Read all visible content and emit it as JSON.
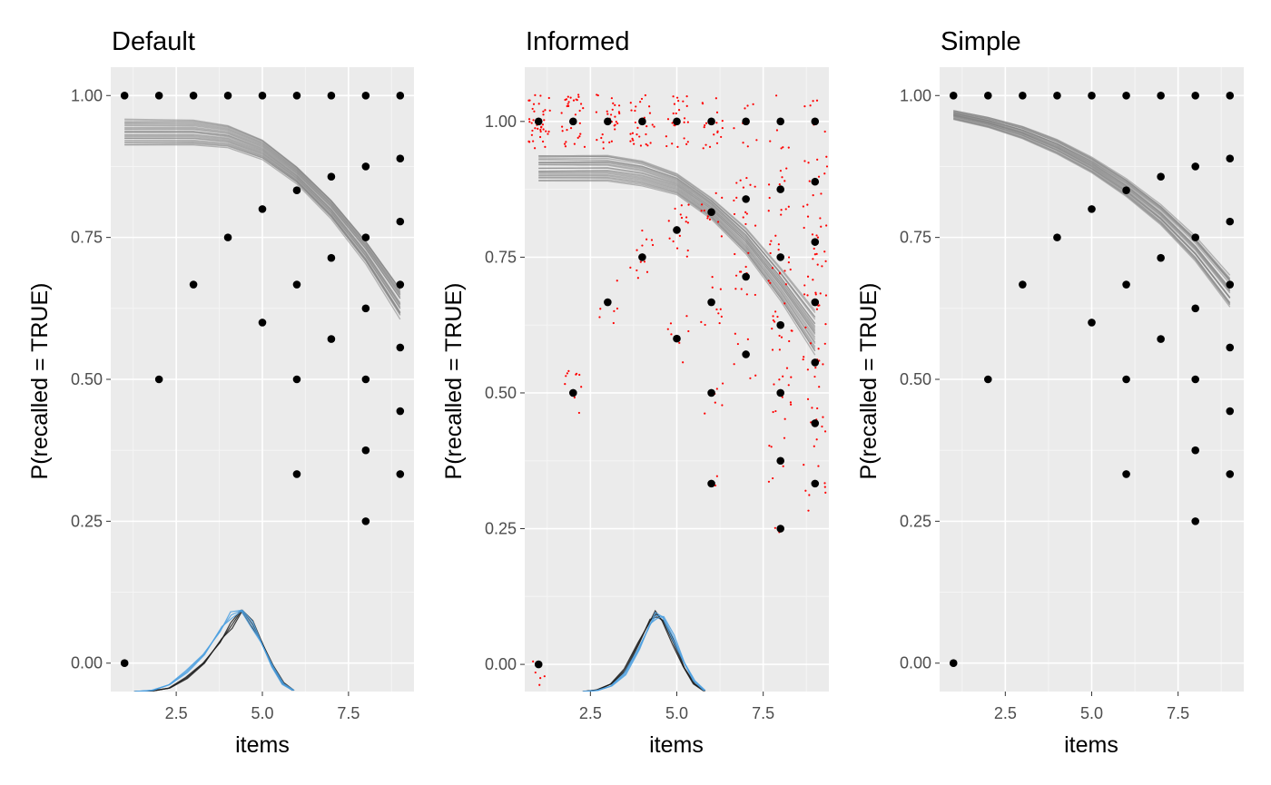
{
  "colors": {
    "panel_background": "#EBEBEB",
    "grid_major": "#FFFFFF",
    "grid_minor": "#F5F5F5",
    "points": "#000000",
    "fit_lines": "#808080",
    "jitter_points": "#FF0000",
    "density_dark": "#1A1A1A",
    "density_blue": "#4A9FE0"
  },
  "chart_data": [
    {
      "type": "scatter",
      "title": "Default",
      "xlabel": "items",
      "ylabel": "P(recalled = TRUE)",
      "xlim": [
        0.6,
        9.4
      ],
      "ylim": [
        -0.05,
        1.05
      ],
      "xticks": [
        2.5,
        5.0,
        7.5
      ],
      "xtick_labels": [
        "2.5",
        "5.0",
        "7.5"
      ],
      "yticks": [
        0,
        0.25,
        0.5,
        0.75,
        1.0
      ],
      "ytick_labels": [
        "0.00",
        "0.25",
        "0.50",
        "0.75",
        "1.00"
      ],
      "grid": true,
      "points": [
        [
          1,
          1.0
        ],
        [
          2,
          1.0
        ],
        [
          3,
          1.0
        ],
        [
          4,
          1.0
        ],
        [
          5,
          1.0
        ],
        [
          6,
          1.0
        ],
        [
          7,
          1.0
        ],
        [
          8,
          1.0
        ],
        [
          9,
          1.0
        ],
        [
          1,
          0.0
        ],
        [
          2,
          0.5
        ],
        [
          3,
          0.667
        ],
        [
          4,
          0.75
        ],
        [
          5,
          0.8
        ],
        [
          5,
          0.6
        ],
        [
          6,
          0.833
        ],
        [
          6,
          0.667
        ],
        [
          6,
          0.5
        ],
        [
          6,
          0.333
        ],
        [
          7,
          0.857
        ],
        [
          7,
          0.714
        ],
        [
          7,
          0.571
        ],
        [
          8,
          0.875
        ],
        [
          8,
          0.75
        ],
        [
          8,
          0.625
        ],
        [
          8,
          0.5
        ],
        [
          8,
          0.375
        ],
        [
          8,
          0.25
        ],
        [
          9,
          0.889
        ],
        [
          9,
          0.778
        ],
        [
          9,
          0.667
        ],
        [
          9,
          0.556
        ],
        [
          9,
          0.444
        ],
        [
          9,
          0.333
        ]
      ],
      "fit_lines": {
        "count": 22,
        "x": [
          1,
          2,
          3,
          4,
          5,
          6,
          7,
          8,
          9
        ],
        "mean": [
          0.935,
          0.935,
          0.935,
          0.928,
          0.905,
          0.86,
          0.8,
          0.725,
          0.635
        ],
        "spread": [
          0.022,
          0.022,
          0.022,
          0.02,
          0.018,
          0.016,
          0.018,
          0.022,
          0.03
        ]
      },
      "density": {
        "baseline": -0.05,
        "x": [
          1.3,
          1.8,
          2.3,
          2.8,
          3.3,
          3.8,
          4.1,
          4.4,
          4.7,
          5.0,
          5.3,
          5.6,
          5.9
        ],
        "dark": [
          0.0,
          0.001,
          0.006,
          0.024,
          0.05,
          0.09,
          0.116,
          0.143,
          0.12,
          0.085,
          0.045,
          0.015,
          0.002
        ],
        "blue": [
          0.0,
          0.002,
          0.012,
          0.035,
          0.065,
          0.11,
          0.135,
          0.143,
          0.118,
          0.082,
          0.043,
          0.013,
          0.002
        ]
      }
    },
    {
      "type": "scatter",
      "title": "Informed",
      "xlabel": "items",
      "ylabel": "P(recalled = TRUE)",
      "xlim": [
        0.6,
        9.4
      ],
      "ylim": [
        -0.05,
        1.1
      ],
      "xticks": [
        2.5,
        5.0,
        7.5
      ],
      "xtick_labels": [
        "2.5",
        "5.0",
        "7.5"
      ],
      "yticks": [
        0,
        0.25,
        0.5,
        0.75,
        1.0
      ],
      "ytick_labels": [
        "0.00",
        "0.25",
        "0.50",
        "0.75",
        "1.00"
      ],
      "grid": true,
      "points": [
        [
          1,
          1.0
        ],
        [
          2,
          1.0
        ],
        [
          3,
          1.0
        ],
        [
          4,
          1.0
        ],
        [
          5,
          1.0
        ],
        [
          6,
          1.0
        ],
        [
          7,
          1.0
        ],
        [
          8,
          1.0
        ],
        [
          9,
          1.0
        ],
        [
          1,
          0.0
        ],
        [
          2,
          0.5
        ],
        [
          3,
          0.667
        ],
        [
          4,
          0.75
        ],
        [
          5,
          0.8
        ],
        [
          5,
          0.6
        ],
        [
          6,
          0.833
        ],
        [
          6,
          0.667
        ],
        [
          6,
          0.5
        ],
        [
          6,
          0.333
        ],
        [
          7,
          0.857
        ],
        [
          7,
          0.714
        ],
        [
          7,
          0.571
        ],
        [
          8,
          0.875
        ],
        [
          8,
          0.75
        ],
        [
          8,
          0.625
        ],
        [
          8,
          0.5
        ],
        [
          8,
          0.375
        ],
        [
          8,
          0.25
        ],
        [
          9,
          0.889
        ],
        [
          9,
          0.778
        ],
        [
          9,
          0.667
        ],
        [
          9,
          0.556
        ],
        [
          9,
          0.444
        ],
        [
          9,
          0.333
        ]
      ],
      "fit_lines": {
        "count": 22,
        "x": [
          1,
          2,
          3,
          4,
          5,
          6,
          7,
          8,
          9
        ],
        "mean": [
          0.915,
          0.915,
          0.915,
          0.905,
          0.885,
          0.84,
          0.78,
          0.7,
          0.61
        ],
        "spread": [
          0.025,
          0.025,
          0.025,
          0.024,
          0.02,
          0.02,
          0.024,
          0.03,
          0.04
        ]
      },
      "jitter": {
        "groups": [
          {
            "x": 1,
            "y": 1.0,
            "n": 40,
            "xs": 0.35,
            "ys": 0.05
          },
          {
            "x": 2,
            "y": 1.0,
            "n": 32,
            "xs": 0.35,
            "ys": 0.05
          },
          {
            "x": 3,
            "y": 1.0,
            "n": 30,
            "xs": 0.35,
            "ys": 0.05
          },
          {
            "x": 4,
            "y": 1.0,
            "n": 28,
            "xs": 0.35,
            "ys": 0.05
          },
          {
            "x": 5,
            "y": 1.0,
            "n": 26,
            "xs": 0.35,
            "ys": 0.05
          },
          {
            "x": 6,
            "y": 1.0,
            "n": 18,
            "xs": 0.35,
            "ys": 0.05
          },
          {
            "x": 7,
            "y": 1.0,
            "n": 8,
            "xs": 0.35,
            "ys": 0.05
          },
          {
            "x": 8,
            "y": 1.0,
            "n": 6,
            "xs": 0.35,
            "ys": 0.05
          },
          {
            "x": 9,
            "y": 1.0,
            "n": 6,
            "xs": 0.35,
            "ys": 0.05
          },
          {
            "x": 1,
            "y": 0.0,
            "n": 6,
            "xs": 0.25,
            "ys": 0.04
          },
          {
            "x": 2,
            "y": 0.5,
            "n": 10,
            "xs": 0.3,
            "ys": 0.05
          },
          {
            "x": 3,
            "y": 0.667,
            "n": 6,
            "xs": 0.35,
            "ys": 0.04
          },
          {
            "x": 4,
            "y": 0.75,
            "n": 12,
            "xs": 0.35,
            "ys": 0.05
          },
          {
            "x": 5,
            "y": 0.8,
            "n": 16,
            "xs": 0.35,
            "ys": 0.05
          },
          {
            "x": 5,
            "y": 0.6,
            "n": 8,
            "xs": 0.35,
            "ys": 0.05
          },
          {
            "x": 6,
            "y": 0.833,
            "n": 10,
            "xs": 0.35,
            "ys": 0.05
          },
          {
            "x": 6,
            "y": 0.667,
            "n": 10,
            "xs": 0.35,
            "ys": 0.05
          },
          {
            "x": 6,
            "y": 0.5,
            "n": 6,
            "xs": 0.35,
            "ys": 0.04
          },
          {
            "x": 6,
            "y": 0.333,
            "n": 2,
            "xs": 0.2,
            "ys": 0.02
          },
          {
            "x": 7,
            "y": 0.857,
            "n": 14,
            "xs": 0.35,
            "ys": 0.05
          },
          {
            "x": 7,
            "y": 0.714,
            "n": 12,
            "xs": 0.35,
            "ys": 0.05
          },
          {
            "x": 7,
            "y": 0.571,
            "n": 6,
            "xs": 0.35,
            "ys": 0.05
          },
          {
            "x": 8,
            "y": 0.875,
            "n": 12,
            "xs": 0.35,
            "ys": 0.05
          },
          {
            "x": 8,
            "y": 0.75,
            "n": 16,
            "xs": 0.35,
            "ys": 0.05
          },
          {
            "x": 8,
            "y": 0.625,
            "n": 14,
            "xs": 0.35,
            "ys": 0.05
          },
          {
            "x": 8,
            "y": 0.5,
            "n": 12,
            "xs": 0.35,
            "ys": 0.05
          },
          {
            "x": 8,
            "y": 0.375,
            "n": 6,
            "xs": 0.35,
            "ys": 0.05
          },
          {
            "x": 8,
            "y": 0.25,
            "n": 2,
            "xs": 0.2,
            "ys": 0.02
          },
          {
            "x": 9,
            "y": 0.889,
            "n": 12,
            "xs": 0.35,
            "ys": 0.05
          },
          {
            "x": 9,
            "y": 0.778,
            "n": 16,
            "xs": 0.35,
            "ys": 0.05
          },
          {
            "x": 9,
            "y": 0.667,
            "n": 16,
            "xs": 0.35,
            "ys": 0.05
          },
          {
            "x": 9,
            "y": 0.556,
            "n": 12,
            "xs": 0.35,
            "ys": 0.05
          },
          {
            "x": 9,
            "y": 0.444,
            "n": 10,
            "xs": 0.35,
            "ys": 0.05
          },
          {
            "x": 9,
            "y": 0.333,
            "n": 8,
            "xs": 0.35,
            "ys": 0.05
          }
        ]
      },
      "density": {
        "baseline": -0.05,
        "x": [
          2.3,
          2.7,
          3.1,
          3.5,
          3.9,
          4.2,
          4.4,
          4.6,
          4.9,
          5.2,
          5.5,
          5.8
        ],
        "dark": [
          0.0,
          0.003,
          0.014,
          0.04,
          0.09,
          0.128,
          0.143,
          0.13,
          0.09,
          0.045,
          0.014,
          0.001
        ],
        "blue": [
          0.0,
          0.002,
          0.01,
          0.032,
          0.078,
          0.12,
          0.14,
          0.138,
          0.1,
          0.055,
          0.02,
          0.002
        ]
      }
    },
    {
      "type": "scatter",
      "title": "Simple",
      "xlabel": "items",
      "ylabel": "P(recalled = TRUE)",
      "xlim": [
        0.6,
        9.4
      ],
      "ylim": [
        -0.05,
        1.05
      ],
      "xticks": [
        2.5,
        5.0,
        7.5
      ],
      "xtick_labels": [
        "2.5",
        "5.0",
        "7.5"
      ],
      "yticks": [
        0,
        0.25,
        0.5,
        0.75,
        1.0
      ],
      "ytick_labels": [
        "0.00",
        "0.25",
        "0.50",
        "0.75",
        "1.00"
      ],
      "grid": true,
      "points": [
        [
          1,
          1.0
        ],
        [
          2,
          1.0
        ],
        [
          3,
          1.0
        ],
        [
          4,
          1.0
        ],
        [
          5,
          1.0
        ],
        [
          6,
          1.0
        ],
        [
          7,
          1.0
        ],
        [
          8,
          1.0
        ],
        [
          9,
          1.0
        ],
        [
          1,
          0.0
        ],
        [
          2,
          0.5
        ],
        [
          3,
          0.667
        ],
        [
          4,
          0.75
        ],
        [
          5,
          0.8
        ],
        [
          5,
          0.6
        ],
        [
          6,
          0.833
        ],
        [
          6,
          0.667
        ],
        [
          6,
          0.5
        ],
        [
          6,
          0.333
        ],
        [
          7,
          0.857
        ],
        [
          7,
          0.714
        ],
        [
          7,
          0.571
        ],
        [
          8,
          0.875
        ],
        [
          8,
          0.75
        ],
        [
          8,
          0.625
        ],
        [
          8,
          0.5
        ],
        [
          8,
          0.375
        ],
        [
          8,
          0.25
        ],
        [
          9,
          0.889
        ],
        [
          9,
          0.778
        ],
        [
          9,
          0.667
        ],
        [
          9,
          0.556
        ],
        [
          9,
          0.444
        ],
        [
          9,
          0.333
        ]
      ],
      "fit_lines": {
        "count": 22,
        "x": [
          1,
          2,
          3,
          4,
          5,
          6,
          7,
          8,
          9
        ],
        "mean": [
          0.966,
          0.953,
          0.935,
          0.91,
          0.878,
          0.838,
          0.79,
          0.73,
          0.655
        ],
        "spread": [
          0.008,
          0.009,
          0.011,
          0.013,
          0.014,
          0.016,
          0.018,
          0.022,
          0.028
        ]
      }
    }
  ]
}
